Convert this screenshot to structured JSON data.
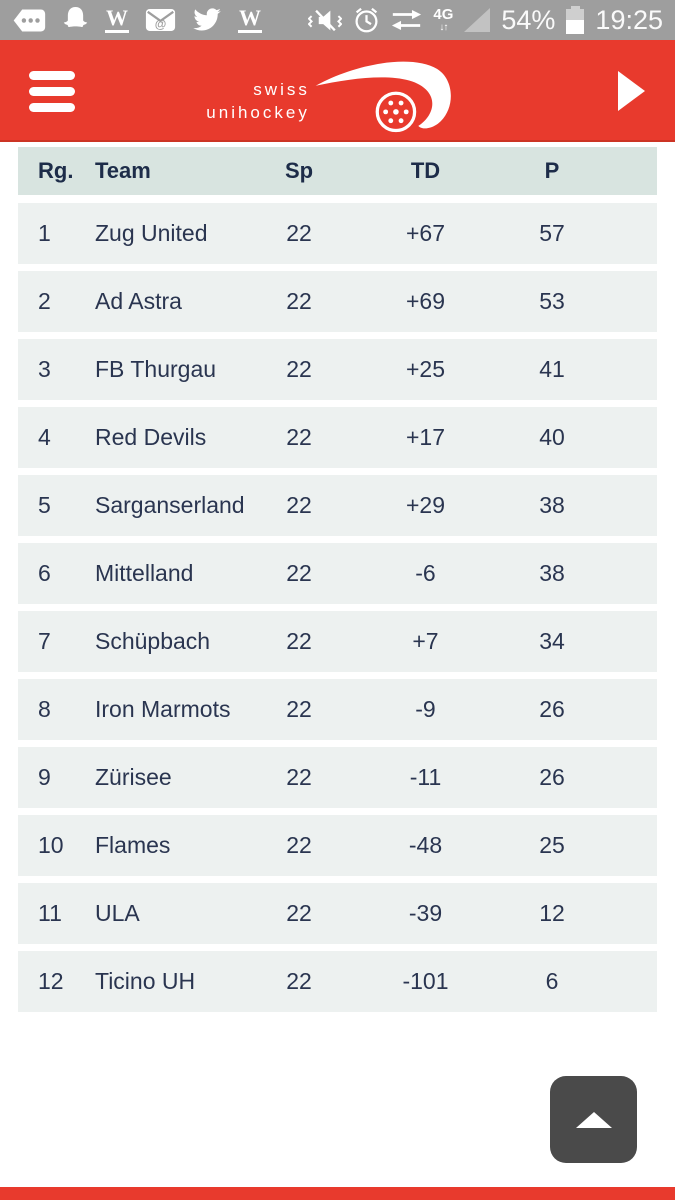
{
  "status_bar": {
    "time": "19:25",
    "battery": "54%",
    "network_label": "4G",
    "wikipedia_glyph": "W",
    "left_icons": [
      "chat-icon",
      "snapchat-icon",
      "wikipedia-icon",
      "email-icon",
      "twitter-icon",
      "wikipedia-icon"
    ],
    "right_icons": [
      "vibrate-icon",
      "alarm-icon",
      "data-transfer-icon",
      "network-4g-icon",
      "signal-icon",
      "battery-icon"
    ]
  },
  "header": {
    "logo": {
      "line1": "swiss",
      "line2": "unihockey"
    },
    "menu_icon": "hamburger-icon",
    "play_icon": "play-arrow-icon"
  },
  "table": {
    "columns": {
      "rank": "Rg.",
      "team": "Team",
      "games": "Sp",
      "goal_diff": "TD",
      "points": "P"
    },
    "rows": [
      {
        "rank": "1",
        "team": "Zug United",
        "sp": "22",
        "td": "+67",
        "p": "57"
      },
      {
        "rank": "2",
        "team": "Ad Astra",
        "sp": "22",
        "td": "+69",
        "p": "53"
      },
      {
        "rank": "3",
        "team": "FB Thurgau",
        "sp": "22",
        "td": "+25",
        "p": "41"
      },
      {
        "rank": "4",
        "team": "Red Devils",
        "sp": "22",
        "td": "+17",
        "p": "40"
      },
      {
        "rank": "5",
        "team": "Sarganserland",
        "sp": "22",
        "td": "+29",
        "p": "38"
      },
      {
        "rank": "6",
        "team": "Mittelland",
        "sp": "22",
        "td": "-6",
        "p": "38"
      },
      {
        "rank": "7",
        "team": "Schüpbach",
        "sp": "22",
        "td": "+7",
        "p": "34"
      },
      {
        "rank": "8",
        "team": "Iron Marmots",
        "sp": "22",
        "td": "-9",
        "p": "26"
      },
      {
        "rank": "9",
        "team": "Zürisee",
        "sp": "22",
        "td": "-11",
        "p": "26"
      },
      {
        "rank": "10",
        "team": "Flames",
        "sp": "22",
        "td": "-48",
        "p": "25"
      },
      {
        "rank": "11",
        "team": "ULA",
        "sp": "22",
        "td": "-39",
        "p": "12"
      },
      {
        "rank": "12",
        "team": "Ticino UH",
        "sp": "22",
        "td": "-101",
        "p": "6"
      }
    ]
  },
  "scroll_top": {
    "icon": "up-arrow-icon"
  },
  "colors": {
    "brand_red": "#e83a2d",
    "status_bar_gray": "#9e9e9e",
    "table_header_bg": "#d8e4e0",
    "row_bg": "#edf1f0",
    "text_navy": "#2a3550",
    "button_gray": "#4a4a4a"
  }
}
